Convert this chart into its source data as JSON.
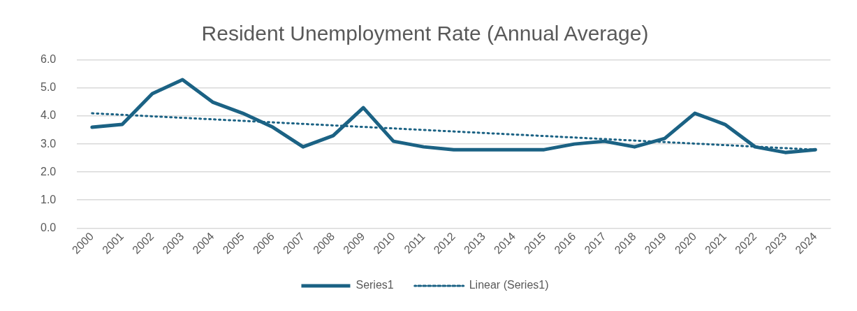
{
  "chart_data": {
    "type": "line",
    "title": "Resident Unemployment Rate (Annual Average)",
    "categories": [
      "2000",
      "2001",
      "2002",
      "2003",
      "2004",
      "2005",
      "2006",
      "2007",
      "2008",
      "2009",
      "2010",
      "2011",
      "2012",
      "2013",
      "2014",
      "2015",
      "2016",
      "2017",
      "2018",
      "2019",
      "2020",
      "2021",
      "2022",
      "2023",
      "2024"
    ],
    "series": [
      {
        "name": "Series1",
        "color": "#1b6284",
        "values": [
          3.6,
          3.7,
          4.8,
          5.3,
          4.5,
          4.1,
          3.6,
          2.9,
          3.3,
          4.3,
          3.1,
          2.9,
          2.8,
          2.8,
          2.8,
          2.8,
          3.0,
          3.1,
          2.9,
          3.2,
          4.1,
          3.7,
          2.9,
          2.7,
          2.8
        ]
      },
      {
        "name": "Linear (Series1)",
        "type": "line",
        "line_style": "dotted",
        "color": "#1b6284",
        "values": [
          4.1,
          null,
          null,
          null,
          null,
          null,
          null,
          null,
          null,
          null,
          null,
          null,
          null,
          null,
          null,
          null,
          null,
          null,
          null,
          null,
          null,
          null,
          null,
          null,
          2.8
        ]
      }
    ],
    "ylim": [
      0,
      6
    ],
    "yticks": [
      {
        "value": 0,
        "label": "0.0"
      },
      {
        "value": 1,
        "label": "1.0"
      },
      {
        "value": 2,
        "label": "2.0"
      },
      {
        "value": 3,
        "label": "3.0"
      },
      {
        "value": 4,
        "label": "4.0"
      },
      {
        "value": 5,
        "label": "5.0"
      },
      {
        "value": 6,
        "label": "6.0"
      }
    ],
    "grid": "y",
    "legend": "bottom",
    "marker": "none"
  }
}
